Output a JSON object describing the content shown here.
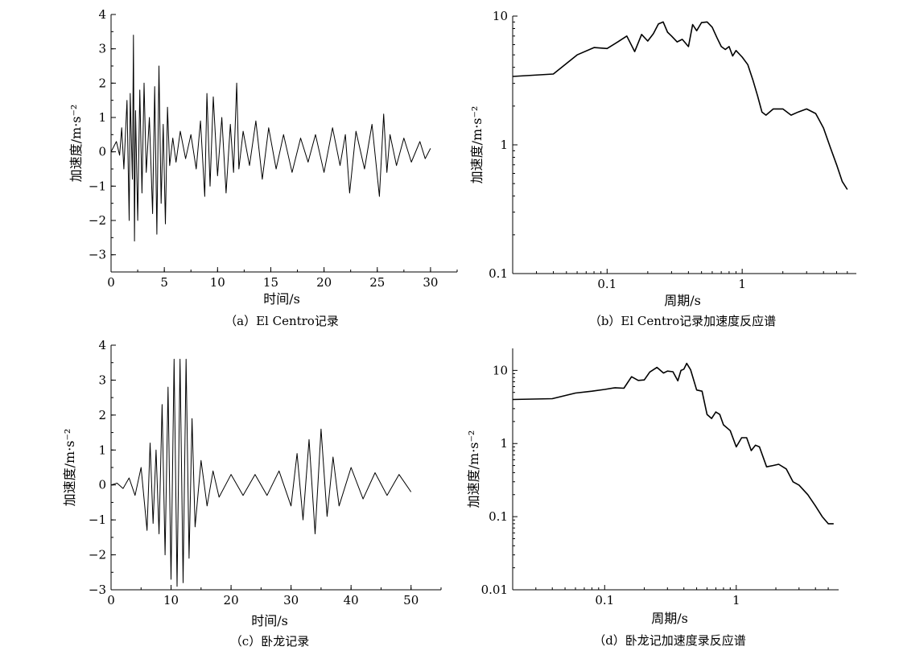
{
  "chart_data": [
    {
      "type": "line",
      "caption": "（a）El Centro记录",
      "xlabel": "时间/s",
      "ylabel": "加速度/m·s⁻²",
      "xlim": [
        0,
        32.5
      ],
      "ylim": [
        -3.5,
        4
      ],
      "xticks": [
        0,
        5,
        10,
        15,
        20,
        25,
        30
      ],
      "xtick_labels": [
        "0",
        "5",
        "10",
        "15",
        "20",
        "25",
        "30"
      ],
      "yticks": [
        -3,
        -2,
        -1,
        0,
        1,
        2,
        3,
        4
      ],
      "ytick_labels": [
        "−3",
        "−2",
        "−1",
        "0",
        "1",
        "2",
        "3",
        "4"
      ],
      "series": [
        {
          "x": [
            0,
            0.5,
            0.8,
            1.0,
            1.2,
            1.5,
            1.7,
            1.8,
            2.0,
            2.1,
            2.2,
            2.3,
            2.5,
            2.7,
            2.9,
            3.1,
            3.3,
            3.6,
            3.9,
            4.1,
            4.3,
            4.5,
            4.7,
            4.9,
            5.1,
            5.3,
            5.5,
            5.8,
            6.1,
            6.5,
            7.0,
            7.5,
            8.0,
            8.4,
            8.8,
            9.0,
            9.3,
            9.6,
            10.0,
            10.4,
            10.8,
            11.2,
            11.5,
            11.8,
            12.0,
            12.4,
            13.0,
            13.6,
            14.2,
            14.8,
            15.5,
            16.2,
            17.0,
            17.8,
            18.5,
            19.2,
            20.0,
            20.8,
            21.5,
            22.0,
            22.4,
            23.0,
            23.8,
            24.5,
            25.2,
            25.6,
            25.9,
            26.2,
            26.8,
            27.5,
            28.2,
            29.0,
            29.5,
            30.0
          ],
          "values": [
            0,
            0.3,
            -0.1,
            0.7,
            -0.5,
            1.5,
            -2.0,
            1.7,
            -0.8,
            3.4,
            -2.6,
            1.2,
            -2.0,
            1.8,
            -1.2,
            2.0,
            -0.6,
            1.0,
            -1.8,
            1.9,
            -2.4,
            2.5,
            -1.5,
            0.8,
            -2.1,
            1.3,
            -0.4,
            0.4,
            -0.3,
            0.6,
            -0.2,
            0.5,
            -0.5,
            0.9,
            -1.3,
            1.7,
            -1.0,
            1.6,
            -0.7,
            1.0,
            -1.2,
            0.8,
            -0.6,
            2.0,
            -0.5,
            0.6,
            -0.4,
            0.9,
            -0.8,
            0.7,
            -0.5,
            0.5,
            -0.6,
            0.4,
            -0.3,
            0.5,
            -0.6,
            0.7,
            -0.4,
            0.5,
            -1.2,
            0.6,
            -0.5,
            0.8,
            -1.3,
            1.1,
            -0.6,
            0.5,
            -0.4,
            0.4,
            -0.3,
            0.3,
            -0.2,
            0.1
          ]
        }
      ]
    },
    {
      "type": "line",
      "caption": "（b）El Centro记录加速度反应谱",
      "xlabel": "周期/s",
      "ylabel": "加速度/m·s⁻²",
      "xscale": "log",
      "yscale": "log",
      "xlim": [
        0.02,
        7
      ],
      "ylim": [
        0.1,
        10
      ],
      "xticks": [
        0.1,
        1
      ],
      "xtick_labels": [
        "0.1",
        "1"
      ],
      "yticks": [
        0.1,
        1,
        10
      ],
      "ytick_labels": [
        "0.1",
        "1",
        "10"
      ],
      "series": [
        {
          "x": [
            0.02,
            0.04,
            0.06,
            0.08,
            0.1,
            0.12,
            0.14,
            0.16,
            0.18,
            0.2,
            0.22,
            0.24,
            0.26,
            0.28,
            0.3,
            0.33,
            0.36,
            0.4,
            0.43,
            0.46,
            0.5,
            0.55,
            0.6,
            0.65,
            0.7,
            0.75,
            0.8,
            0.85,
            0.9,
            1.0,
            1.1,
            1.2,
            1.3,
            1.4,
            1.5,
            1.7,
            2.0,
            2.3,
            2.6,
            3.0,
            3.5,
            4.0,
            4.5,
            5.0,
            5.5,
            6.0
          ],
          "values": [
            3.4,
            3.55,
            5.0,
            5.7,
            5.6,
            6.3,
            7.0,
            5.3,
            7.2,
            6.4,
            7.3,
            8.7,
            9.0,
            7.5,
            7.0,
            6.3,
            6.6,
            5.8,
            8.6,
            7.7,
            8.9,
            9.0,
            8.2,
            6.8,
            5.8,
            5.5,
            5.8,
            4.9,
            5.4,
            4.8,
            4.2,
            3.2,
            2.4,
            1.8,
            1.7,
            1.9,
            1.9,
            1.7,
            1.8,
            1.9,
            1.75,
            1.35,
            0.95,
            0.7,
            0.52,
            0.45
          ]
        }
      ]
    },
    {
      "type": "line",
      "caption": "（c）卧龙记录",
      "xlabel": "时间/s",
      "ylabel": "加速度/m·s⁻²",
      "xlim": [
        0,
        55
      ],
      "ylim": [
        -3,
        4
      ],
      "xticks": [
        0,
        10,
        20,
        30,
        40,
        50
      ],
      "xtick_labels": [
        "0",
        "10",
        "20",
        "30",
        "40",
        "50"
      ],
      "yticks": [
        -3,
        -2,
        -1,
        0,
        1,
        2,
        3,
        4
      ],
      "ytick_labels": [
        "−3",
        "−2",
        "−1",
        "0",
        "1",
        "2",
        "3",
        "4"
      ],
      "series": [
        {
          "x": [
            0,
            1,
            2,
            3,
            4,
            5,
            6,
            6.5,
            7,
            7.5,
            8,
            8.5,
            9,
            9.5,
            10,
            10.5,
            11,
            11.5,
            12,
            12.5,
            13,
            13.5,
            14,
            15,
            16,
            17,
            18,
            20,
            22,
            24,
            26,
            28,
            30,
            31,
            32,
            33,
            34,
            35,
            36,
            37,
            38,
            40,
            42,
            44,
            46,
            48,
            50
          ],
          "values": [
            0,
            0.05,
            -0.1,
            0.2,
            -0.3,
            0.5,
            -1.3,
            1.2,
            -1.1,
            1.0,
            -1.4,
            2.3,
            -2.0,
            2.8,
            -2.7,
            3.6,
            -2.9,
            3.6,
            -2.8,
            3.6,
            -2.1,
            1.9,
            -1.2,
            0.7,
            -0.6,
            0.4,
            -0.35,
            0.3,
            -0.3,
            0.3,
            -0.3,
            0.4,
            -0.6,
            0.9,
            -1.0,
            1.3,
            -1.4,
            1.6,
            -0.9,
            0.8,
            -0.6,
            0.5,
            -0.4,
            0.35,
            -0.3,
            0.3,
            -0.2
          ]
        }
      ]
    },
    {
      "type": "line",
      "caption": "（d）卧龙记加速度录反应谱",
      "xlabel": "周期/s",
      "ylabel": "加速度/m·s⁻²",
      "xscale": "log",
      "yscale": "log",
      "xlim": [
        0.02,
        6
      ],
      "ylim": [
        0.01,
        20
      ],
      "xticks": [
        0.1,
        1
      ],
      "xtick_labels": [
        "0.1",
        "1"
      ],
      "yticks": [
        0.01,
        0.1,
        1,
        10
      ],
      "ytick_labels": [
        "0.01",
        "0.1",
        "1",
        "10"
      ],
      "series": [
        {
          "x": [
            0.02,
            0.04,
            0.06,
            0.08,
            0.1,
            0.12,
            0.14,
            0.16,
            0.18,
            0.2,
            0.22,
            0.25,
            0.28,
            0.3,
            0.33,
            0.36,
            0.38,
            0.4,
            0.42,
            0.45,
            0.5,
            0.55,
            0.6,
            0.65,
            0.7,
            0.75,
            0.8,
            0.9,
            1.0,
            1.1,
            1.2,
            1.3,
            1.4,
            1.5,
            1.7,
            1.9,
            2.1,
            2.4,
            2.7,
            3.0,
            3.5,
            4.0,
            4.5,
            5.0,
            5.5
          ],
          "values": [
            4.0,
            4.1,
            4.9,
            5.2,
            5.5,
            5.8,
            5.7,
            8.2,
            7.3,
            7.4,
            9.5,
            11.0,
            9.2,
            9.8,
            9.6,
            7.2,
            10.0,
            10.4,
            12.5,
            10.2,
            5.4,
            5.2,
            2.5,
            2.2,
            2.7,
            2.5,
            1.8,
            1.5,
            0.9,
            1.2,
            1.2,
            0.8,
            0.95,
            0.9,
            0.48,
            0.5,
            0.52,
            0.45,
            0.3,
            0.27,
            0.2,
            0.14,
            0.1,
            0.08,
            0.08
          ]
        }
      ]
    }
  ]
}
